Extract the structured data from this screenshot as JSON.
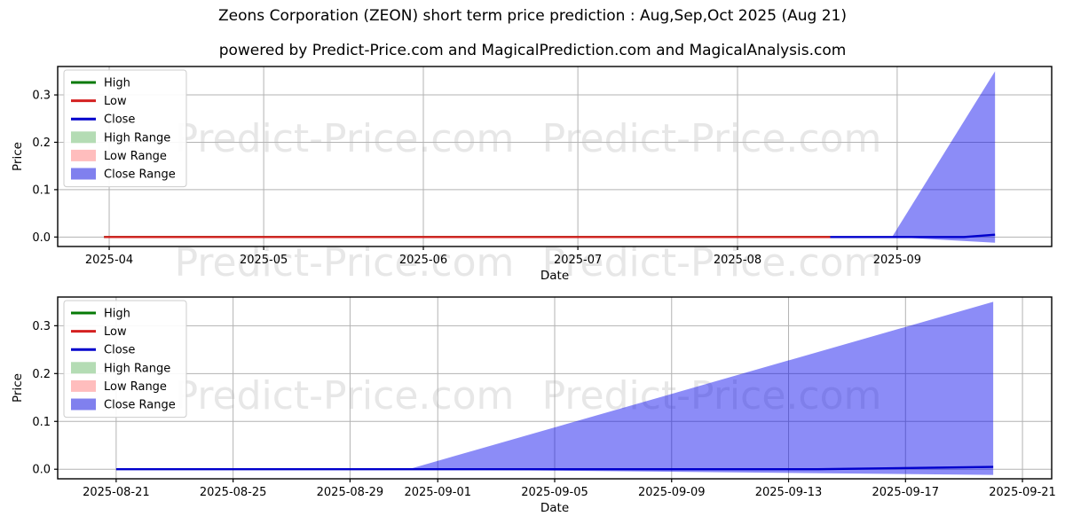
{
  "page": {
    "title": "Zeons Corporation (ZEON) short term price prediction : Aug,Sep,Oct 2025 (Aug 21)",
    "subtitle": "powered by Predict-Price.com and MagicalPrediction.com and MagicalAnalysis.com",
    "watermark_text": "Predict-Price.com"
  },
  "colors": {
    "background": "#ffffff",
    "text": "#000000",
    "grid": "#b3b3b3",
    "spine": "#000000",
    "watermark": "#e7e7e7",
    "high": "#067a06",
    "low": "#d42020",
    "close": "#0000cc",
    "high_range": "#b4dcb4",
    "low_range": "#ffbdbd",
    "close_range": "#8080ee",
    "close_range_fill": "#0000ee"
  },
  "legend": {
    "items": [
      {
        "label": "High",
        "swatch": "line",
        "color_key": "high"
      },
      {
        "label": "Low",
        "swatch": "line",
        "color_key": "low"
      },
      {
        "label": "Close",
        "swatch": "line",
        "color_key": "close"
      },
      {
        "label": "High Range",
        "swatch": "patch",
        "color_key": "high_range"
      },
      {
        "label": "Low Range",
        "swatch": "patch",
        "color_key": "low_range"
      },
      {
        "label": "Close Range",
        "swatch": "patch",
        "color_key": "close_range"
      }
    ]
  },
  "chart_data": [
    {
      "type": "area",
      "name": "long-range-history-and-prediction",
      "xlabel": "Date",
      "ylabel": "Price",
      "ylim": [
        -0.02,
        0.36
      ],
      "y_ticks": [
        0.0,
        0.1,
        0.2,
        0.3
      ],
      "x_axis": {
        "epoch_date": "2025-03-22",
        "min_day": 0,
        "max_day": 193
      },
      "x_ticks": [
        {
          "label": "2025-04",
          "day": 10
        },
        {
          "label": "2025-05",
          "day": 40
        },
        {
          "label": "2025-06",
          "day": 71
        },
        {
          "label": "2025-07",
          "day": 101
        },
        {
          "label": "2025-08",
          "day": 132
        },
        {
          "label": "2025-09",
          "day": 163
        }
      ],
      "series": [
        {
          "name": "High",
          "color_key": "high",
          "points": [
            [
              9,
              0
            ],
            [
              150,
              0
            ]
          ]
        },
        {
          "name": "Low",
          "color_key": "low",
          "points": [
            [
              9,
              0
            ],
            [
              150,
              0
            ]
          ]
        },
        {
          "name": "Close",
          "color_key": "close",
          "points": [
            [
              150,
              0
            ],
            [
              176,
              0
            ],
            [
              182,
              0.005
            ]
          ]
        }
      ],
      "bands": [
        {
          "name": "Close Range",
          "color_key": "close_range_fill",
          "opacity": 0.45,
          "upper": [
            [
              162,
              0
            ],
            [
              182,
              0.35
            ]
          ],
          "lower": [
            [
              162,
              0
            ],
            [
              182,
              -0.012
            ]
          ]
        }
      ]
    },
    {
      "type": "area",
      "name": "short-range-prediction-aug21-sep21",
      "xlabel": "Date",
      "ylabel": "Price",
      "ylim": [
        -0.02,
        0.36
      ],
      "y_ticks": [
        0.0,
        0.1,
        0.2,
        0.3
      ],
      "x_axis": {
        "epoch_date": "2025-08-19",
        "min_day": 0,
        "max_day": 34
      },
      "x_ticks": [
        {
          "label": "2025-08-21",
          "day": 2
        },
        {
          "label": "2025-08-25",
          "day": 6
        },
        {
          "label": "2025-08-29",
          "day": 10
        },
        {
          "label": "2025-09-01",
          "day": 13
        },
        {
          "label": "2025-09-05",
          "day": 17
        },
        {
          "label": "2025-09-09",
          "day": 21
        },
        {
          "label": "2025-09-13",
          "day": 25
        },
        {
          "label": "2025-09-17",
          "day": 29
        },
        {
          "label": "2025-09-21",
          "day": 33
        }
      ],
      "series": [
        {
          "name": "Close",
          "color_key": "close",
          "points": [
            [
              2,
              0
            ],
            [
              26,
              0
            ],
            [
              32,
              0.005
            ]
          ]
        }
      ],
      "bands": [
        {
          "name": "Close Range",
          "color_key": "close_range_fill",
          "opacity": 0.45,
          "upper": [
            [
              12,
              0
            ],
            [
              32,
              0.35
            ]
          ],
          "lower": [
            [
              12,
              0
            ],
            [
              32,
              -0.012
            ]
          ]
        }
      ]
    }
  ]
}
